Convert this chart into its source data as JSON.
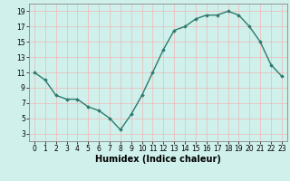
{
  "x": [
    0,
    1,
    2,
    3,
    4,
    5,
    6,
    7,
    8,
    9,
    10,
    11,
    12,
    13,
    14,
    15,
    16,
    17,
    18,
    19,
    20,
    21,
    22,
    23
  ],
  "y": [
    11,
    10,
    8,
    7.5,
    7.5,
    6.5,
    6,
    5,
    3.5,
    5.5,
    8,
    11,
    14,
    16.5,
    17,
    18,
    18.5,
    18.5,
    19,
    18.5,
    17,
    15,
    12,
    10.5
  ],
  "line_color": "#2d7a6e",
  "marker": "D",
  "marker_size": 1.8,
  "linewidth": 1.0,
  "xlabel": "Humidex (Indice chaleur)",
  "xlim": [
    -0.5,
    23.5
  ],
  "ylim": [
    2,
    20
  ],
  "yticks": [
    3,
    5,
    7,
    9,
    11,
    13,
    15,
    17,
    19
  ],
  "xticks": [
    0,
    1,
    2,
    3,
    4,
    5,
    6,
    7,
    8,
    9,
    10,
    11,
    12,
    13,
    14,
    15,
    16,
    17,
    18,
    19,
    20,
    21,
    22,
    23
  ],
  "background_color": "#cff0eb",
  "grid_color": "#f0b8b8",
  "tick_fontsize": 5.5,
  "xlabel_fontsize": 7,
  "spine_color": "#888888"
}
